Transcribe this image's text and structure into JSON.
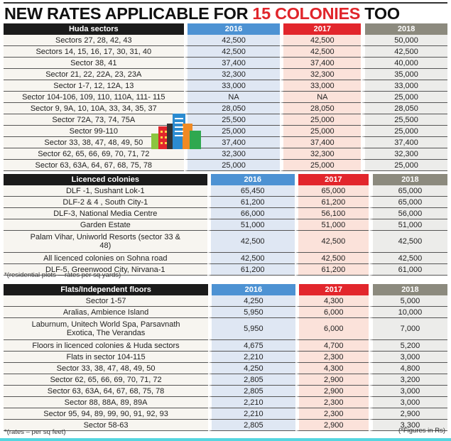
{
  "title": {
    "part1": "NEW RATES APPLICABLE FOR",
    "highlight": "15 COLONIES",
    "part2": "TOO"
  },
  "years": [
    "2016",
    "2017",
    "2018"
  ],
  "colors": {
    "2016": "#4d92d3",
    "2017": "#e2262c",
    "2018": "#8c8a7e",
    "highlight": "#e0252b"
  },
  "sections": [
    {
      "header": "Huda sectors",
      "rows": [
        [
          "Sectors 27, 28, 42, 43",
          "42,500",
          "42,500",
          "50,000"
        ],
        [
          "Sectors 14, 15, 16, 17, 30, 31, 40",
          "42,500",
          "42,500",
          "42,500"
        ],
        [
          "Sector 38, 41",
          "37,400",
          "37,400",
          "40,000"
        ],
        [
          "Sector 21, 22, 22A, 23, 23A",
          "32,300",
          "32,300",
          "35,000"
        ],
        [
          "Sector 1-7, 12, 12A, 13",
          "33,000",
          "33,000",
          "33,000"
        ],
        [
          "Sector 104-106, 109, 110, 110A, 111- 115",
          "NA",
          "NA",
          "25,000"
        ],
        [
          "Sector 9, 9A, 10, 10A, 33, 34, 35, 37",
          "28,050",
          "28,050",
          "28,050"
        ],
        [
          "Sector 72A, 73, 74, 75A",
          "25,500",
          "25,000",
          "25,500"
        ],
        [
          "Sector 99-110",
          "25,000",
          "25,000",
          "25,000"
        ],
        [
          "Sector 33, 38, 47, 48, 49, 50",
          "37,400",
          "37,400",
          "37,400"
        ],
        [
          "Sector 62, 65, 66, 69, 70, 71, 72",
          "32,300",
          "32,300",
          "32,300"
        ],
        [
          "Sector 63, 63A, 64, 67, 68, 75, 78",
          "25,000",
          "25,000",
          "25,000"
        ]
      ]
    },
    {
      "header": "Licenced colonies",
      "rows": [
        [
          "DLF -1, Sushant Lok-1",
          "65,450",
          "65,000",
          "65,000"
        ],
        [
          "DLF-2 & 4 , South City-1",
          "61,200",
          "61,200",
          "65,000"
        ],
        [
          "DLF-3, National Media Centre",
          "66,000",
          "56,100",
          "56,000"
        ],
        [
          "Garden Estate",
          "51,000",
          "51,000",
          "51,000"
        ],
        [
          "Palam Vihar, Uniworld Resorts (sector 33 & 48)",
          "42,500",
          "42,500",
          "42,500"
        ],
        [
          "All licenced colonies on Sohna road",
          "42,500",
          "42,500",
          "42,500"
        ],
        [
          "DLF-5, Greenwood City, Nirvana-1",
          "61,200",
          "61,200",
          "61,000"
        ]
      ],
      "note": "*(residential plots —rates per sq yards)"
    },
    {
      "header": "Flats/Independent floors",
      "rows": [
        [
          "Sector 1-57",
          "4,250",
          "4,300",
          "5,000"
        ],
        [
          "Aralias, Ambience Island",
          "5,950",
          "6,000",
          "10,000"
        ],
        [
          "Laburnum, Unitech World Spa, Parsavnath Exotica, The Verandas",
          "5,950",
          "6,000",
          "7,000"
        ],
        [
          "Floors in licenced colonies & Huda sectors",
          "4,675",
          "4,700",
          "5,200"
        ],
        [
          "Flats in sector 104-115",
          "2,210",
          "2,300",
          "3,000"
        ],
        [
          "Sector 33, 38, 47, 48, 49, 50",
          "4,250",
          "4,300",
          "4,800"
        ],
        [
          "Sector 62, 65, 66, 69, 70, 71, 72",
          "2,805",
          "2,900",
          "3,200"
        ],
        [
          "Sector 63, 63A, 64, 67, 68, 75, 78",
          "2,805",
          "2,900",
          "3,000"
        ],
        [
          "Sector 88, 88A, 89, 89A",
          "2,210",
          "2,300",
          "3,000"
        ],
        [
          "Sector 95, 94, 89, 99, 90, 91, 92, 93",
          "2,210",
          "2,300",
          "2,900"
        ],
        [
          "Sector 58-63",
          "2,805",
          "2,900",
          "3,300"
        ]
      ],
      "note": "*(rates – per sq feet)",
      "note_right": "(*Figures in Rs)"
    }
  ],
  "double_rows": {
    "1": [
      4
    ],
    "2": [
      2
    ]
  },
  "icons": {
    "illustration": "buildings-icon"
  }
}
